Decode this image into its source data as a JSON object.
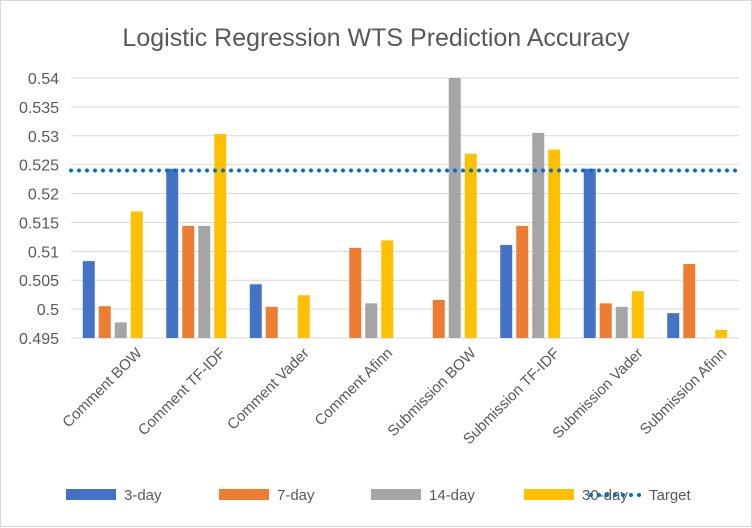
{
  "chart_data": {
    "type": "bar",
    "title": "Logistic Regression WTS Prediction Accuracy",
    "categories": [
      "Comment BOW",
      "Comment TF-IDF",
      "Comment Vader",
      "Comment Afinn",
      "Submission BOW",
      "Submission TF-IDF",
      "Submission Vader",
      "Submission Afinn"
    ],
    "ylim": [
      0.495,
      0.54
    ],
    "yticks": [
      "0.495",
      "0.5",
      "0.505",
      "0.51",
      "0.515",
      "0.52",
      "0.525",
      "0.53",
      "0.535",
      "0.54"
    ],
    "grid": true,
    "legend_position": "bottom",
    "series": [
      {
        "name": "3-day",
        "color": "#4472C4",
        "values": [
          0.5083,
          0.5243,
          0.5043,
          null,
          null,
          0.5111,
          0.5243,
          0.4993
        ]
      },
      {
        "name": "7-day",
        "color": "#ED7D31",
        "values": [
          0.5005,
          0.5144,
          0.5004,
          0.5106,
          0.5016,
          0.5144,
          0.501,
          0.5078
        ]
      },
      {
        "name": "14-day",
        "color": "#A5A5A5",
        "values": [
          0.4977,
          0.5144,
          null,
          0.501,
          0.54,
          0.5305,
          0.5004,
          null
        ]
      },
      {
        "name": "30-day",
        "color": "#FFC000",
        "values": [
          0.5169,
          0.5303,
          0.5024,
          0.5119,
          0.5269,
          0.5276,
          0.5031,
          0.4964
        ]
      }
    ],
    "target": {
      "name": "Target",
      "value": 0.524,
      "color": "#0070C0",
      "style": "dotted"
    }
  }
}
